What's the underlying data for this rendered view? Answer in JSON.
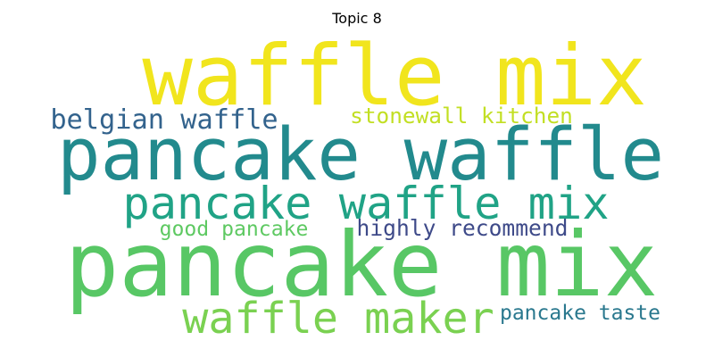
{
  "chart_data": {
    "type": "wordcloud",
    "title": "Topic 8",
    "words": [
      {
        "text": "waffle mix",
        "color": "#f1e51d"
      },
      {
        "text": "pancake waffle",
        "color": "#228a8d"
      },
      {
        "text": "pancake mix",
        "color": "#58c765"
      },
      {
        "text": "pancake waffle mix",
        "color": "#20a386"
      },
      {
        "text": "waffle maker",
        "color": "#7ad151"
      },
      {
        "text": "belgian waffle",
        "color": "#33638d"
      },
      {
        "text": "stonewall kitchen",
        "color": "#c2df23"
      },
      {
        "text": "highly recommend",
        "color": "#3e4a89"
      },
      {
        "text": "good pancake",
        "color": "#5ec962"
      },
      {
        "text": "pancake taste",
        "color": "#2a788e"
      }
    ]
  }
}
